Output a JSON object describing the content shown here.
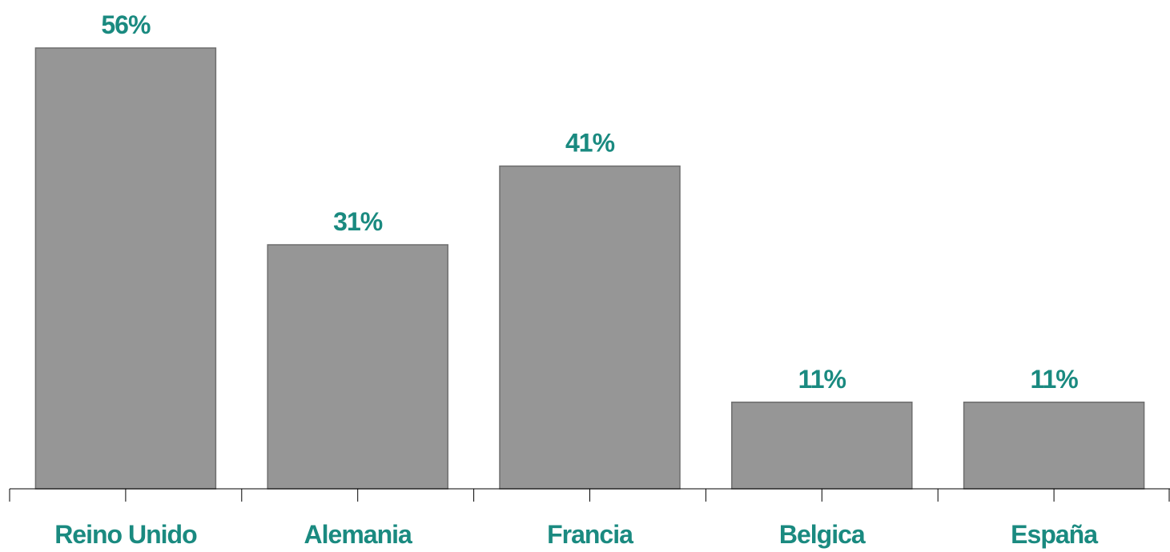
{
  "chart_data": {
    "type": "bar",
    "title": "",
    "xlabel": "",
    "ylabel": "",
    "categories": [
      "Reino Unido",
      "Alemania",
      "Francia",
      "Belgica",
      "España"
    ],
    "values": [
      56,
      31,
      41,
      11,
      11
    ],
    "value_labels": [
      "56%",
      "31%",
      "41%",
      "11%",
      "11%"
    ],
    "ylim": [
      0,
      56
    ],
    "grid": false,
    "legend": "none",
    "colors": {
      "bar": "#969696",
      "bar_border": "#6e6e6e",
      "label_text": "#1a8a80",
      "axis": "#000000"
    }
  }
}
